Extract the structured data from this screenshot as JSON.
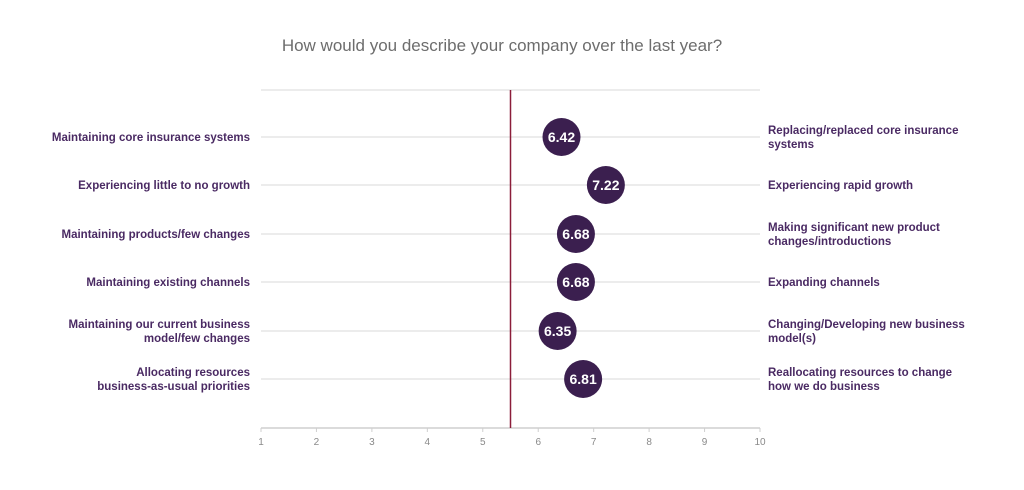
{
  "title": "How would you describe your company over the last year?",
  "colors": {
    "bubble": "#3b1f4f",
    "left_label": "#4a2a63",
    "right_label": "#4a2a63",
    "midline": "#8b1d3a",
    "gridline": "#d9d9d9",
    "axis": "#cfcfcf",
    "tick": "#8a8a8a",
    "title": "#6d6d6d"
  },
  "chart_data": {
    "type": "scatter",
    "title": "How would you describe your company over the last year?",
    "xlim": [
      1,
      10
    ],
    "x_ticks": [
      "1",
      "2",
      "3",
      "4",
      "5",
      "6",
      "7",
      "8",
      "9",
      "10"
    ],
    "midpoint": 5.5,
    "grid": true,
    "rows": [
      {
        "left": [
          "Maintaining core insurance systems"
        ],
        "right": [
          "Replacing/replaced core insurance",
          "systems"
        ],
        "value": 6.42,
        "label": "6.42"
      },
      {
        "left": [
          "Experiencing little to no growth"
        ],
        "right": [
          "Experiencing rapid growth"
        ],
        "value": 7.22,
        "label": "7.22"
      },
      {
        "left": [
          "Maintaining products/few changes"
        ],
        "right": [
          "Making significant new product",
          "changes/introductions"
        ],
        "value": 6.68,
        "label": "6.68"
      },
      {
        "left": [
          "Maintaining existing channels"
        ],
        "right": [
          "Expanding channels"
        ],
        "value": 6.68,
        "label": "6.68"
      },
      {
        "left": [
          "Maintaining our current business",
          "model/few changes"
        ],
        "right": [
          "Changing/Developing new business",
          "model(s)"
        ],
        "value": 6.35,
        "label": "6.35"
      },
      {
        "left": [
          "Allocating resources",
          "business-as-usual priorities"
        ],
        "right": [
          "Reallocating resources to change",
          "how we do business"
        ],
        "value": 6.81,
        "label": "6.81"
      }
    ]
  }
}
